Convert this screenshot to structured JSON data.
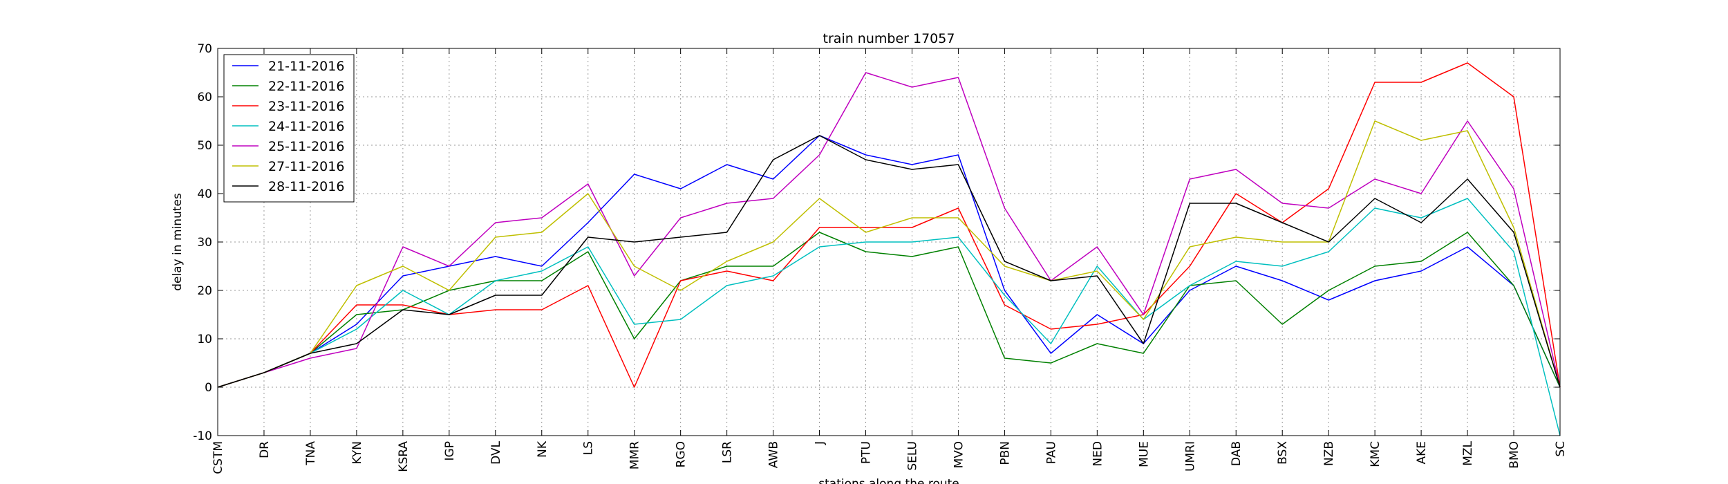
{
  "chart_data": {
    "type": "line",
    "title": "train number 17057",
    "xlabel": "stations along the route",
    "ylabel": "delay in minutes",
    "ylim": [
      -10,
      70
    ],
    "yticks": [
      -10,
      0,
      10,
      20,
      30,
      40,
      50,
      60,
      70
    ],
    "grid": true,
    "legend_position": "top-left",
    "categories": [
      "CSTM",
      "DR",
      "TNA",
      "KYN",
      "KSRA",
      "IGP",
      "DVL",
      "NK",
      "LS",
      "MMR",
      "RGO",
      "LSR",
      "AWB",
      "J",
      "PTU",
      "SELU",
      "MVO",
      "PBN",
      "PAU",
      "NED",
      "MUE",
      "UMRI",
      "DAB",
      "BSX",
      "NZB",
      "KMC",
      "AKE",
      "MZL",
      "BMO",
      "SC"
    ],
    "series": [
      {
        "name": "21-11-2016",
        "color": "#0000ff",
        "values": [
          0,
          3,
          7,
          13,
          23,
          25,
          27,
          25,
          34,
          44,
          41,
          46,
          43,
          52,
          48,
          46,
          48,
          20,
          7,
          15,
          9,
          20,
          25,
          22,
          18,
          22,
          24,
          29,
          21,
          0
        ]
      },
      {
        "name": "22-11-2016",
        "color": "#008000",
        "values": [
          0,
          3,
          7,
          15,
          16,
          20,
          22,
          22,
          28,
          10,
          22,
          25,
          25,
          32,
          28,
          27,
          29,
          6,
          5,
          9,
          7,
          21,
          22,
          13,
          20,
          25,
          26,
          32,
          21,
          0
        ]
      },
      {
        "name": "23-11-2016",
        "color": "#ff0000",
        "values": [
          0,
          3,
          7,
          17,
          17,
          15,
          16,
          16,
          21,
          0,
          22,
          24,
          22,
          33,
          33,
          33,
          37,
          17,
          12,
          13,
          15,
          25,
          40,
          34,
          41,
          63,
          63,
          67,
          60,
          0
        ]
      },
      {
        "name": "24-11-2016",
        "color": "#00bfbf",
        "values": [
          0,
          3,
          7,
          12,
          20,
          15,
          22,
          24,
          29,
          13,
          14,
          21,
          23,
          29,
          30,
          30,
          31,
          19,
          9,
          25,
          14,
          21,
          26,
          25,
          28,
          37,
          35,
          39,
          28,
          -10
        ]
      },
      {
        "name": "25-11-2016",
        "color": "#bf00bf",
        "values": [
          0,
          3,
          6,
          8,
          29,
          25,
          34,
          35,
          42,
          23,
          35,
          38,
          39,
          48,
          65,
          62,
          64,
          37,
          22,
          29,
          15,
          43,
          45,
          38,
          37,
          43,
          40,
          55,
          41,
          0
        ]
      },
      {
        "name": "27-11-2016",
        "color": "#bfbf00",
        "values": [
          0,
          3,
          7,
          21,
          25,
          20,
          31,
          32,
          40,
          25,
          20,
          26,
          30,
          39,
          32,
          35,
          35,
          25,
          22,
          24,
          14,
          29,
          31,
          30,
          30,
          55,
          51,
          53,
          33,
          0
        ]
      },
      {
        "name": "28-11-2016",
        "color": "#000000",
        "values": [
          0,
          3,
          7,
          9,
          16,
          15,
          19,
          19,
          31,
          30,
          31,
          32,
          47,
          52,
          47,
          45,
          46,
          26,
          22,
          23,
          9,
          38,
          38,
          34,
          30,
          39,
          34,
          43,
          32,
          0
        ]
      }
    ]
  }
}
